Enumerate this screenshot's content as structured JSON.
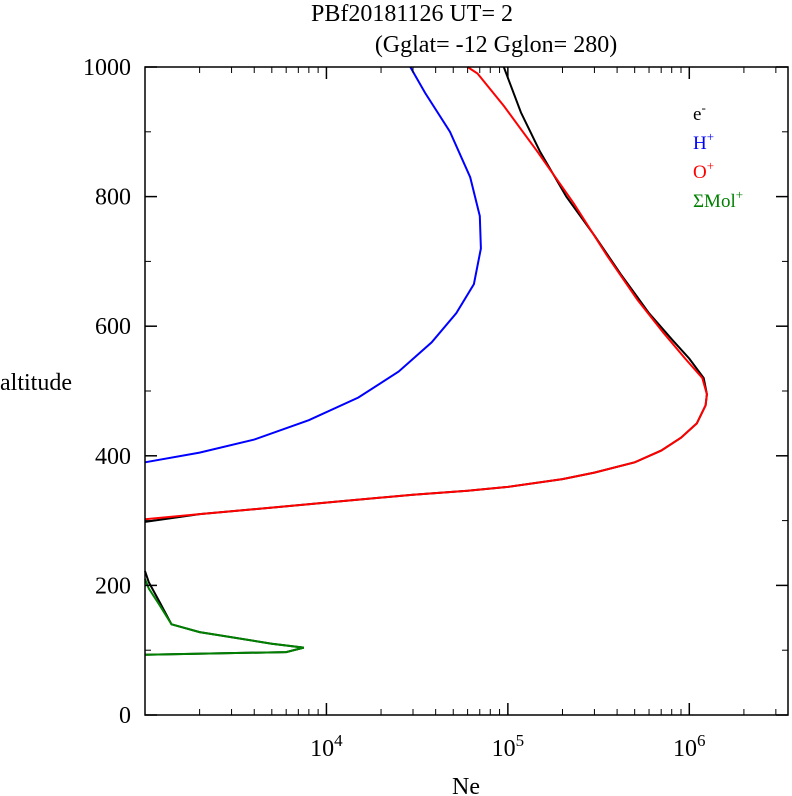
{
  "chart_data": {
    "type": "line",
    "title": "PBf20181126   UT=  2",
    "subtitle": "(Gglat= -12   Gglon=  280)",
    "xlabel": "Ne",
    "ylabel": "altitude",
    "x_scale": "log",
    "xlim": [
      1000,
      3500000
    ],
    "ylim": [
      0,
      1000
    ],
    "y_ticks": [
      0,
      200,
      400,
      600,
      800,
      1000
    ],
    "x_ticks": [
      {
        "value": 10000,
        "base": "10",
        "exp": "4"
      },
      {
        "value": 100000,
        "base": "10",
        "exp": "5"
      },
      {
        "value": 1000000,
        "base": "10",
        "exp": "6"
      }
    ],
    "legend_position": "top-right",
    "series": [
      {
        "name": "e",
        "sup": "-",
        "color": "#000000",
        "segments": [
          [
            [
              1000,
              93
            ],
            [
              6000,
              97
            ],
            [
              7500,
              104
            ],
            [
              5000,
              110
            ],
            [
              2000,
              128
            ],
            [
              1400,
              140
            ],
            [
              1200,
              175
            ],
            [
              1050,
              205
            ],
            [
              1000,
              222
            ]
          ],
          [
            [
              1000,
              298
            ],
            [
              2000,
              310
            ],
            [
              5000,
              320
            ],
            [
              12000,
              330
            ],
            [
              30000,
              340
            ],
            [
              60000,
              346
            ],
            [
              100000,
              352
            ],
            [
              200000,
              364
            ],
            [
              300000,
              374
            ],
            [
              500000,
              390
            ],
            [
              700000,
              408
            ],
            [
              900000,
              428
            ],
            [
              1100000,
              450
            ],
            [
              1230000,
              478
            ],
            [
              1250000,
              495
            ],
            [
              1200000,
              520
            ],
            [
              1000000,
              550
            ],
            [
              800000,
              580
            ],
            [
              600000,
              620
            ],
            [
              420000,
              680
            ],
            [
              300000,
              740
            ],
            [
              210000,
              800
            ],
            [
              150000,
              870
            ],
            [
              118000,
              930
            ],
            [
              95000,
              1000
            ]
          ]
        ]
      },
      {
        "name": "H",
        "sup": "+",
        "color": "#0000ff",
        "segments": [
          [
            [
              1000,
              390
            ],
            [
              2000,
              405
            ],
            [
              4000,
              425
            ],
            [
              8000,
              455
            ],
            [
              15000,
              490
            ],
            [
              25000,
              530
            ],
            [
              38000,
              575
            ],
            [
              52000,
              620
            ],
            [
              65000,
              665
            ],
            [
              71000,
              720
            ],
            [
              70000,
              770
            ],
            [
              62000,
              830
            ],
            [
              48000,
              900
            ],
            [
              35000,
              960
            ],
            [
              29000,
              1000
            ]
          ]
        ]
      },
      {
        "name": "O",
        "sup": "+",
        "color": "#ff0000",
        "segments": [
          [
            [
              1000,
              302
            ],
            [
              2000,
              310
            ],
            [
              5000,
              320
            ],
            [
              12000,
              330
            ],
            [
              30000,
              340
            ],
            [
              60000,
              346
            ],
            [
              100000,
              352
            ],
            [
              200000,
              364
            ],
            [
              300000,
              374
            ],
            [
              500000,
              390
            ],
            [
              700000,
              408
            ],
            [
              900000,
              428
            ],
            [
              1100000,
              450
            ],
            [
              1230000,
              478
            ],
            [
              1250000,
              495
            ],
            [
              1180000,
              520
            ],
            [
              950000,
              550
            ],
            [
              720000,
              590
            ],
            [
              520000,
              640
            ],
            [
              350000,
              710
            ],
            [
              230000,
              790
            ],
            [
              145000,
              870
            ],
            [
              95000,
              940
            ],
            [
              68000,
              990
            ],
            [
              60000,
              1000
            ]
          ]
        ]
      },
      {
        "name": "ΣMol",
        "sup": "+",
        "color": "#008000",
        "segments": [
          [
            [
              1000,
              93
            ],
            [
              6000,
              97
            ],
            [
              7500,
              104
            ],
            [
              5000,
              110
            ],
            [
              2000,
              128
            ],
            [
              1400,
              140
            ],
            [
              1200,
              170
            ],
            [
              1050,
              195
            ],
            [
              1000,
              210
            ]
          ]
        ]
      }
    ]
  }
}
